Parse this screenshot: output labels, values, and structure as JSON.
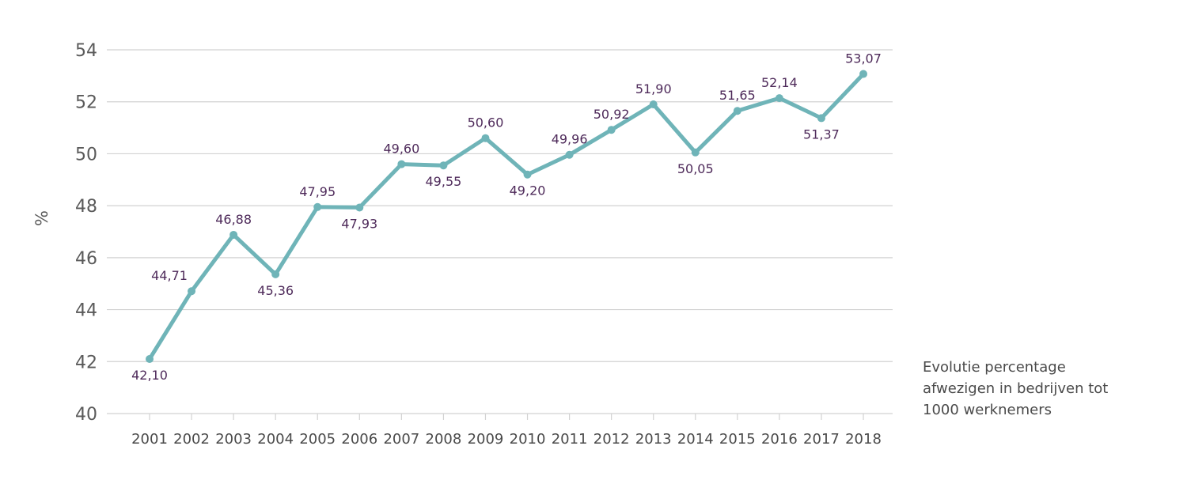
{
  "chart_data": {
    "type": "line",
    "title": "",
    "xlabel": "",
    "ylabel": "%",
    "ylim": [
      40,
      54
    ],
    "y_ticks": [
      "40",
      "42",
      "44",
      "46",
      "48",
      "50",
      "52",
      "54"
    ],
    "grid": true,
    "categories": [
      "2001",
      "2002",
      "2003",
      "2004",
      "2005",
      "2006",
      "2007",
      "2008",
      "2009",
      "2010",
      "2011",
      "2012",
      "2013",
      "2014",
      "2015",
      "2016",
      "2017",
      "2018"
    ],
    "series": [
      {
        "values": [
          42.1,
          44.71,
          46.88,
          45.36,
          47.95,
          47.93,
          49.6,
          49.55,
          50.6,
          49.2,
          49.96,
          50.92,
          51.9,
          50.05,
          51.65,
          52.14,
          51.37,
          53.07
        ],
        "data_labels": [
          "42,10",
          "44,71",
          "46,88",
          "45,36",
          "47,95",
          "47,93",
          "49,60",
          "49,55",
          "50,60",
          "49,20",
          "49,96",
          "50,92",
          "51,90",
          "50,05",
          "51,65",
          "52,14",
          "51,37",
          "53,07"
        ],
        "color": "#6fb4b8"
      }
    ],
    "label_color": "#4e2a5a",
    "annotation": [
      "Evolutie percentage",
      "afwezigen in bedrijven tot",
      "1000 werknemers"
    ]
  }
}
